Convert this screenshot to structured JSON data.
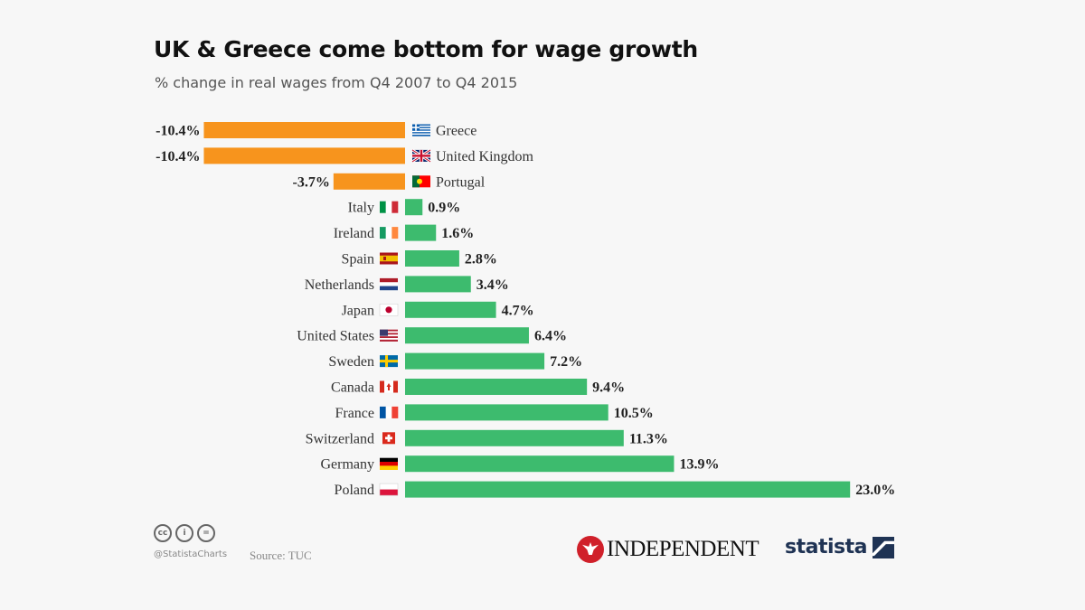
{
  "chart_data": {
    "type": "bar",
    "orientation": "horizontal",
    "title": "UK & Greece come bottom for wage growth",
    "subtitle": "% change in real wages from Q4 2007 to Q4 2015",
    "categories": [
      "Greece",
      "United Kingdom",
      "Portugal",
      "Italy",
      "Ireland",
      "Spain",
      "Netherlands",
      "Japan",
      "United States",
      "Sweden",
      "Canada",
      "France",
      "Switzerland",
      "Germany",
      "Poland"
    ],
    "values": [
      -10.4,
      -10.4,
      -3.7,
      0.9,
      1.6,
      2.8,
      3.4,
      4.7,
      6.4,
      7.2,
      9.4,
      10.5,
      11.3,
      13.9,
      23.0
    ],
    "value_labels": [
      "-10.4%",
      "-10.4%",
      "-3.7%",
      "0.9%",
      "1.6%",
      "2.8%",
      "3.4%",
      "4.7%",
      "6.4%",
      "7.2%",
      "9.4%",
      "10.5%",
      "11.3%",
      "13.9%",
      "23.0%"
    ],
    "flags": [
      "flag-greece-icon",
      "flag-united-kingdom-icon",
      "flag-portugal-icon",
      "flag-italy-icon",
      "flag-ireland-icon",
      "flag-spain-icon",
      "flag-netherlands-icon",
      "flag-japan-icon",
      "flag-united-states-icon",
      "flag-sweden-icon",
      "flag-canada-icon",
      "flag-france-icon",
      "flag-switzerland-icon",
      "flag-germany-icon",
      "flag-poland-icon"
    ],
    "xlim": [
      -10.4,
      23.0
    ],
    "colors": {
      "negative": "#f7941d",
      "positive": "#3dbb6e"
    },
    "grid": false,
    "legend": "none"
  },
  "footer": {
    "cc_icons": [
      "cc",
      "i",
      "="
    ],
    "handle": "@StatistaCharts",
    "source": "Source: TUC",
    "independent": "INDEPENDENT",
    "statista": "statista"
  }
}
